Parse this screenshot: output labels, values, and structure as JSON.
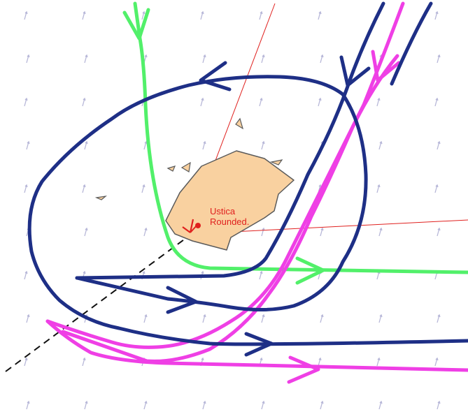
{
  "diagram": {
    "island": {
      "name": "Ustica",
      "status": "Rounded."
    },
    "colors": {
      "background": "#ffffff",
      "wind_arrows": "#b7b7d8",
      "island_fill": "#f9d1a0",
      "island_outline": "#5a5a5a",
      "label": "#e0201e",
      "route_navy": "#1e2f86",
      "route_green": "#52f06a",
      "route_magenta": "#ef3fe5",
      "guide_line": "#111111"
    }
  }
}
